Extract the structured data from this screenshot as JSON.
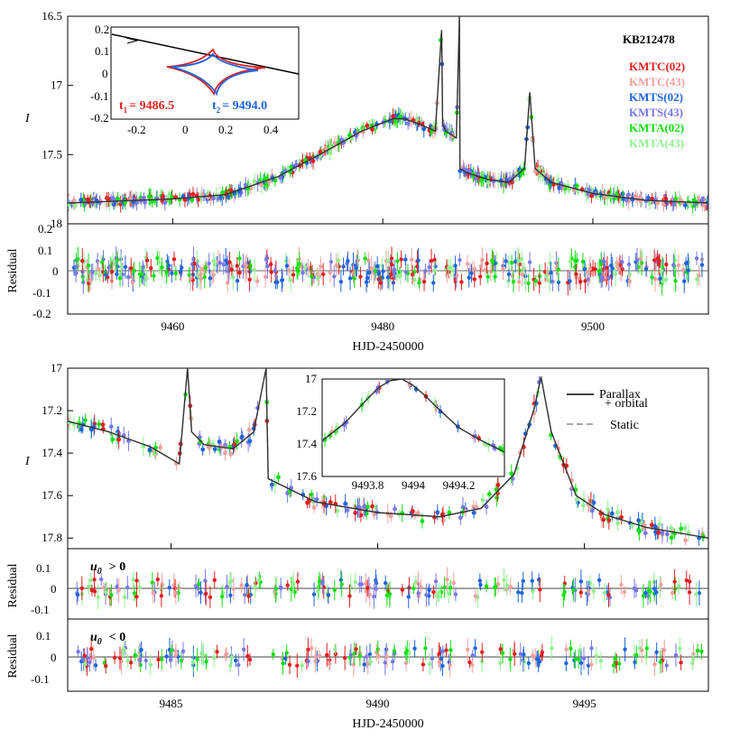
{
  "title": "KB212478",
  "legend": [
    {
      "label": "KMTC(02)",
      "color": "#e02020"
    },
    {
      "label": "KMTC(43)",
      "color": "#f0a0a0"
    },
    {
      "label": "KMTS(02)",
      "color": "#1e64dc"
    },
    {
      "label": "KMTS(43)",
      "color": "#7878e6"
    },
    {
      "label": "KMTA(02)",
      "color": "#10e010"
    },
    {
      "label": "KMTA(43)",
      "color": "#90f090"
    }
  ],
  "model_legend": {
    "parallax": "Parallax",
    "parallax2": "+ orbital",
    "static": "Static"
  },
  "inset_caustic": {
    "t1_label": "t",
    "t1_sub": "1",
    "t1_value": "= 9486.5",
    "t2_label": "t",
    "t2_sub": "2",
    "t2_value": "= 9494.0"
  },
  "labels": {
    "xlabel": "HJD-2450000",
    "ylabel": "I",
    "residual": "Residual",
    "u0_pos": "u",
    "u0_pos_sub": "0",
    "u0_pos_tail": "> 0",
    "u0_neg": "u",
    "u0_neg_sub": "0",
    "u0_neg_tail": "< 0"
  },
  "chart_data": [
    {
      "type": "scatter",
      "name": "top light curve",
      "xlim": [
        9450,
        9511
      ],
      "ylim": [
        18.0,
        16.5
      ],
      "xticks": [
        9460,
        9480,
        9500
      ],
      "yticks": [
        16.5,
        17,
        17.5,
        18
      ],
      "ytick_labels": [
        "16.5",
        "17",
        "17.5",
        "18"
      ],
      "model_x": [
        9450,
        9460,
        9465,
        9470,
        9474,
        9478,
        9481,
        9482,
        9483.5,
        9485,
        9485.6,
        9485.7,
        9486,
        9487,
        9487.3,
        9487.35,
        9488,
        9490,
        9492,
        9493.5,
        9494,
        9494.5,
        9496,
        9500,
        9505,
        9511
      ],
      "model_y": [
        17.85,
        17.82,
        17.79,
        17.66,
        17.5,
        17.33,
        17.24,
        17.24,
        17.28,
        17.33,
        16.6,
        17.28,
        17.33,
        17.38,
        16.5,
        17.6,
        17.63,
        17.68,
        17.7,
        17.6,
        17.05,
        17.6,
        17.7,
        17.78,
        17.83,
        17.85
      ]
    },
    {
      "type": "scatter",
      "name": "inset peak",
      "xlim": [
        9493.6,
        9494.4
      ],
      "ylim": [
        17.6,
        17.0
      ],
      "xticks": [
        9493.8,
        9494,
        9494.2
      ],
      "yticks": [
        17,
        17.2,
        17.4,
        17.6
      ],
      "ytick_labels": [
        "17",
        "17.2",
        "17.4",
        "17.6"
      ],
      "model_x": [
        9493.6,
        9493.7,
        9493.8,
        9493.85,
        9493.9,
        9493.95,
        9494.0,
        9494.05,
        9494.1,
        9494.2,
        9494.3,
        9494.4
      ],
      "model_y": [
        17.38,
        17.27,
        17.12,
        17.05,
        17.01,
        17.0,
        17.04,
        17.1,
        17.17,
        17.3,
        17.38,
        17.45
      ]
    },
    {
      "type": "scatter",
      "name": "bottom light curve",
      "xlim": [
        9482.5,
        9498
      ],
      "ylim": [
        17.85,
        17.0
      ],
      "xticks": [
        9485,
        9490,
        9495
      ],
      "yticks": [
        17,
        17.2,
        17.4,
        17.6,
        17.8
      ],
      "ytick_labels": [
        "17",
        "17.2",
        "17.4",
        "17.6",
        "17.8"
      ],
      "model_x": [
        9482.5,
        9483.5,
        9484.5,
        9485.2,
        9485.4,
        9485.5,
        9485.8,
        9486.5,
        9487.0,
        9487.3,
        9487.35,
        9488.5,
        9490,
        9491.5,
        9492.5,
        9493.3,
        9493.8,
        9493.95,
        9494.2,
        9494.8,
        9495.5,
        9496.5,
        9498
      ],
      "model_y": [
        17.25,
        17.3,
        17.37,
        17.45,
        17.0,
        17.3,
        17.36,
        17.38,
        17.3,
        17.0,
        17.52,
        17.63,
        17.68,
        17.7,
        17.66,
        17.5,
        17.18,
        17.04,
        17.3,
        17.6,
        17.69,
        17.75,
        17.8
      ]
    }
  ],
  "inset_axes": {
    "xticks": [
      "-0.2",
      "0",
      "0.2",
      "0.4"
    ],
    "yticks": [
      "0.2",
      "0.1",
      "0",
      "-0.1",
      "-0.2"
    ]
  },
  "residual_axes": {
    "top": [
      "0.2",
      "0.1",
      "0",
      "-0.1",
      "-0.2"
    ],
    "bottom": [
      "0.1",
      "0",
      "-0.1"
    ]
  }
}
